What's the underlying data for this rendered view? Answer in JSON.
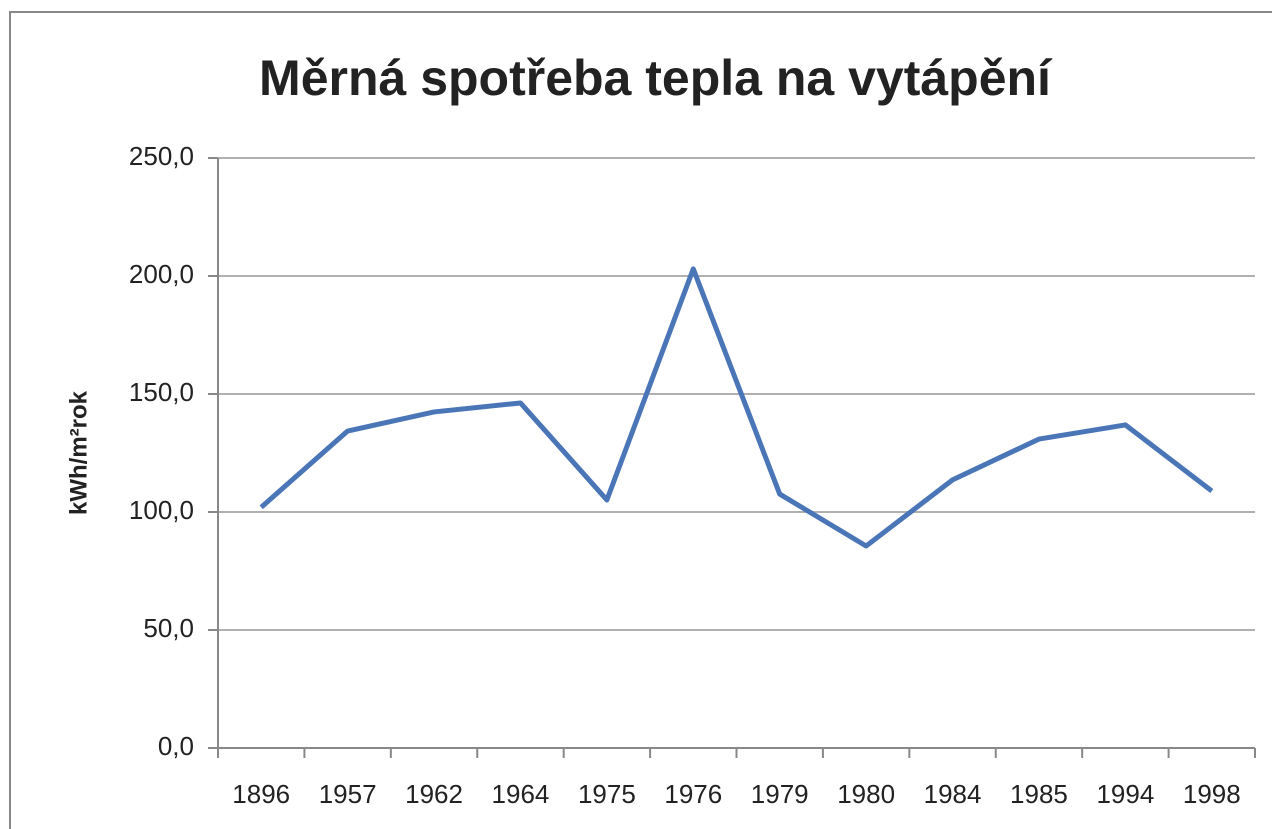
{
  "chart_data": {
    "type": "line",
    "title": "Měrná spotřeba tepla na vytápění",
    "y_label": "kWh/m²rok",
    "categories": [
      "1896",
      "1957",
      "1962",
      "1964",
      "1975",
      "1976",
      "1979",
      "1980",
      "1984",
      "1985",
      "1994",
      "1998"
    ],
    "values": [
      102,
      134.3,
      142.4,
      146.2,
      105.1,
      203,
      107.6,
      85.6,
      113.6,
      130.9,
      136.9,
      108.9
    ],
    "color": "#4a76b8",
    "ylim": [
      0,
      250
    ],
    "yticks": [
      {
        "value": 0,
        "label": "0,0"
      },
      {
        "value": 50,
        "label": "50,0"
      },
      {
        "value": 100,
        "label": "100,0"
      },
      {
        "value": 150,
        "label": "150,0"
      },
      {
        "value": 200,
        "label": "200,0"
      },
      {
        "value": 250,
        "label": "250,0"
      }
    ],
    "grid": true
  }
}
